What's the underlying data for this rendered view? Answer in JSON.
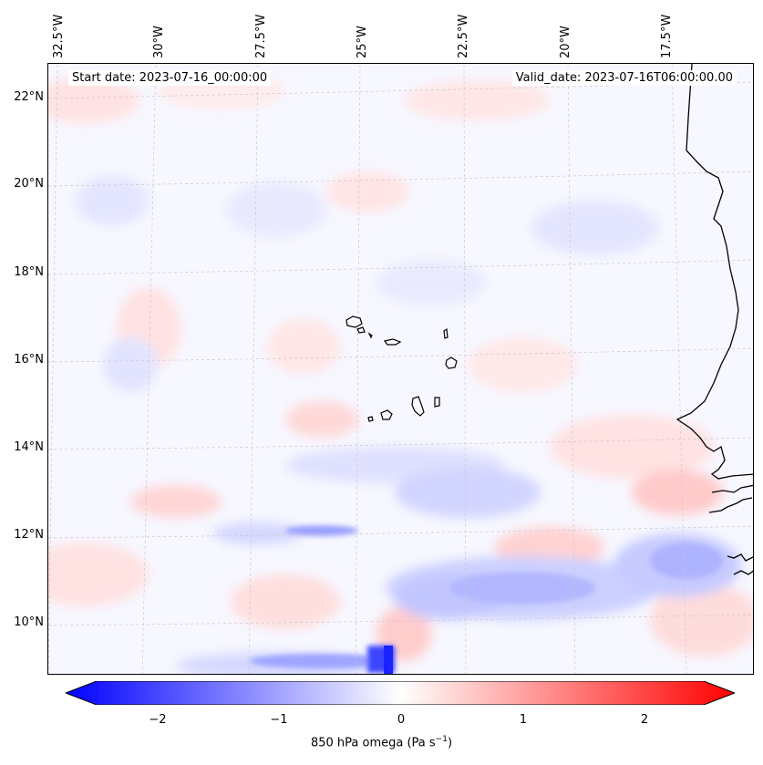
{
  "annotations": {
    "start_date": "Start date: 2023-07-16_00:00:00",
    "valid_date": "Valid_date: 2023-07-16T06:00:00.00"
  },
  "longitude_labels": [
    "32.5°W",
    "30°W",
    "27.5°W",
    "25°W",
    "22.5°W",
    "20°W",
    "17.5°W"
  ],
  "latitude_labels": [
    "22°N",
    "20°N",
    "18°N",
    "16°N",
    "14°N",
    "12°N",
    "10°N"
  ],
  "colorbar": {
    "label_main": "850 hPa omega (Pa s",
    "label_exp": "−1",
    "label_end": ")",
    "tick_labels": [
      "−2",
      "−1",
      "0",
      "1",
      "2"
    ],
    "range": [
      -2.6,
      2.6
    ],
    "colormap": "bwr",
    "extend": "both",
    "colors": {
      "low": "#0000ff",
      "mid": "#ffffff",
      "high": "#ff0000"
    }
  },
  "map": {
    "projection": "Lambert conformal",
    "extent_lon": [
      -32.7,
      -15.6
    ],
    "extent_lat": [
      8.9,
      22.8
    ],
    "coastline_color": "#000000",
    "gridlines": "dashed light grey",
    "features": [
      "Cape Verde islands",
      "West African coastline (Senegal, Gambia, Guinea-Bissau)"
    ]
  }
}
